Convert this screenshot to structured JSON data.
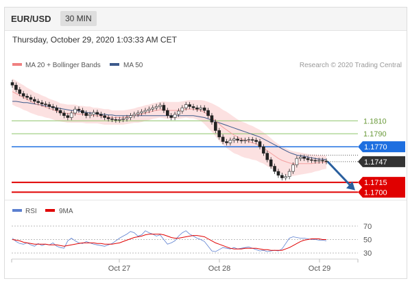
{
  "header": {
    "pair": "EUR/USD",
    "timeframe": "30 MIN"
  },
  "timestamp": "Thursday, October 29, 2020 1:03:33 AM CET",
  "credit": "Research © 2020 Trading Central",
  "colors": {
    "ma20": "#f08080",
    "ma50": "#3d5a8c",
    "green_level": "#8cc468",
    "blue_level": "#1e6fe0",
    "red_level": "#e00000",
    "current": "#333333",
    "rsi": "#5b7fd0",
    "rsi_ma": "#e00000",
    "arrow": "#2a5f9e"
  },
  "chart_data": [
    {
      "type": "line",
      "title": "",
      "legend": [
        {
          "name": "MA 20 + Bollinger Bands",
          "color": "#f08080"
        },
        {
          "name": "MA 50",
          "color": "#3d5a8c"
        }
      ],
      "x_ticks": [
        "Oct 27",
        "Oct 28",
        "Oct 29"
      ],
      "ylim": [
        1.1693,
        1.188
      ],
      "levels": [
        {
          "value": 1.181,
          "label": "1.1810",
          "kind": "resistance"
        },
        {
          "value": 1.179,
          "label": "1.1790",
          "kind": "resistance"
        },
        {
          "value": 1.177,
          "label": "1.1770",
          "kind": "pivot"
        },
        {
          "value": 1.1747,
          "label": "1.1747",
          "kind": "current"
        },
        {
          "value": 1.1715,
          "label": "1.1715",
          "kind": "target"
        },
        {
          "value": 1.17,
          "label": "1.1700",
          "kind": "target"
        }
      ],
      "series": [
        {
          "name": "Price",
          "values": [
            1.1865,
            1.1858,
            1.1852,
            1.1848,
            1.1846,
            1.1843,
            1.184,
            1.1838,
            1.1836,
            1.1835,
            1.1832,
            1.183,
            1.1826,
            1.1822,
            1.1818,
            1.1815,
            1.1822,
            1.1828,
            1.1826,
            1.1822,
            1.1818,
            1.182,
            1.1823,
            1.182,
            1.1818,
            1.1815,
            1.1813,
            1.1812,
            1.1811,
            1.1812,
            1.1813,
            1.1815,
            1.1818,
            1.182,
            1.1822,
            1.1824,
            1.1826,
            1.1828,
            1.183,
            1.1832,
            1.1834,
            1.1826,
            1.1818,
            1.1815,
            1.182,
            1.1825,
            1.183,
            1.1835,
            1.1832,
            1.183,
            1.1828,
            1.183,
            1.1826,
            1.1818,
            1.1808,
            1.1795,
            1.1785,
            1.1778,
            1.1776,
            1.178,
            1.1782,
            1.178,
            1.1779,
            1.178,
            1.1781,
            1.178,
            1.1778,
            1.177,
            1.176,
            1.175,
            1.174,
            1.1732,
            1.1726,
            1.1722,
            1.1724,
            1.1732,
            1.1742,
            1.1752,
            1.1754,
            1.1752,
            1.175,
            1.1749,
            1.1748,
            1.1749,
            1.1748,
            1.1747
          ]
        },
        {
          "name": "MA 20",
          "values": [
            1.1855,
            1.1852,
            1.1849,
            1.1846,
            1.1843,
            1.184,
            1.1837,
            1.1835,
            1.1833,
            1.1831,
            1.1829,
            1.1827,
            1.1825,
            1.1823,
            1.1822,
            1.1821,
            1.1821,
            1.1821,
            1.182,
            1.182,
            1.1819,
            1.1819,
            1.1818,
            1.1818,
            1.1817,
            1.1816,
            1.1816,
            1.1815,
            1.1815,
            1.1815,
            1.1815,
            1.1816,
            1.1817,
            1.1818,
            1.1819,
            1.182,
            1.1822,
            1.1823,
            1.1825,
            1.1826,
            1.1827,
            1.1827,
            1.1826,
            1.1826,
            1.1826,
            1.1826,
            1.1827,
            1.1828,
            1.1828,
            1.1828,
            1.1827,
            1.1826,
            1.1823,
            1.1819,
            1.1815,
            1.181,
            1.1805,
            1.18,
            1.1796,
            1.1792,
            1.1788,
            1.1785,
            1.1782,
            1.178,
            1.1778,
            1.1776,
            1.1774,
            1.1771,
            1.1768,
            1.1764,
            1.176,
            1.1756,
            1.1752,
            1.1749,
            1.1747,
            1.1745,
            1.1744,
            1.1744,
            1.1744,
            1.1744,
            1.1744,
            1.1744,
            1.1745,
            1.1745,
            1.1746,
            1.1746
          ]
        },
        {
          "name": "MA 50",
          "values": [
            1.184,
            1.184,
            1.1839,
            1.1838,
            1.1838,
            1.1837,
            1.1836,
            1.1835,
            1.1834,
            1.1833,
            1.1832,
            1.1831,
            1.183,
            1.1829,
            1.1828,
            1.1827,
            1.1826,
            1.1826,
            1.1825,
            1.1824,
            1.1823,
            1.1822,
            1.1822,
            1.1821,
            1.182,
            1.182,
            1.1819,
            1.1819,
            1.1818,
            1.1818,
            1.1818,
            1.1818,
            1.1818,
            1.1818,
            1.1818,
            1.1818,
            1.1818,
            1.1818,
            1.1818,
            1.1818,
            1.1818,
            1.1818,
            1.1818,
            1.1818,
            1.1818,
            1.1818,
            1.1818,
            1.1818,
            1.1818,
            1.1818,
            1.1817,
            1.1816,
            1.1815,
            1.1813,
            1.1811,
            1.1809,
            1.1807,
            1.1805,
            1.1803,
            1.1801,
            1.1799,
            1.1797,
            1.1795,
            1.1793,
            1.1791,
            1.1789,
            1.1787,
            1.1785,
            1.1782,
            1.1779,
            1.1776,
            1.1773,
            1.177,
            1.1767,
            1.1764,
            1.1761,
            1.1759,
            1.1757,
            1.1756,
            1.1755,
            1.1754,
            1.1753,
            1.1752,
            1.1751,
            1.1751,
            1.175
          ]
        }
      ],
      "band_width": [
        20,
        20,
        19,
        19,
        18,
        18,
        17,
        17,
        16,
        16,
        15,
        15,
        15,
        14,
        14,
        14,
        14,
        14,
        13,
        13,
        13,
        13,
        12,
        12,
        12,
        12,
        12,
        11,
        11,
        11,
        11,
        11,
        11,
        11,
        12,
        12,
        12,
        12,
        12,
        12,
        12,
        13,
        13,
        13,
        13,
        13,
        13,
        13,
        14,
        14,
        15,
        16,
        18,
        20,
        22,
        24,
        26,
        27,
        28,
        28,
        28,
        27,
        27,
        27,
        26,
        26,
        25,
        25,
        24,
        24,
        23,
        22,
        22,
        21,
        21,
        20,
        19,
        18,
        17,
        16,
        15,
        14,
        13,
        12,
        11,
        10
      ]
    },
    {
      "type": "line",
      "title": "",
      "legend": [
        {
          "name": "RSI",
          "color": "#5b7fd0"
        },
        {
          "name": "9MA",
          "color": "#e00000"
        }
      ],
      "ylim": [
        25,
        80
      ],
      "levels": [
        {
          "value": 70,
          "label": "70"
        },
        {
          "value": 50,
          "label": "50"
        },
        {
          "value": 30,
          "label": "30"
        }
      ],
      "series": [
        {
          "name": "RSI",
          "values": [
            52,
            47,
            44,
            43,
            45,
            42,
            40,
            44,
            41,
            43,
            42,
            45,
            40,
            38,
            37,
            48,
            52,
            48,
            45,
            44,
            47,
            45,
            43,
            42,
            41,
            40,
            42,
            44,
            48,
            52,
            55,
            58,
            62,
            60,
            55,
            57,
            63,
            60,
            58,
            55,
            57,
            50,
            43,
            45,
            48,
            55,
            60,
            63,
            58,
            55,
            52,
            50,
            47,
            40,
            33,
            32,
            35,
            38,
            37,
            36,
            38,
            36,
            37,
            38,
            39,
            37,
            35,
            33,
            34,
            32,
            33,
            34,
            33,
            36,
            44,
            52,
            54,
            53,
            52,
            52,
            51,
            50,
            50,
            49,
            49,
            48
          ]
        },
        {
          "name": "9MA",
          "values": [
            50,
            49,
            48,
            46,
            45,
            44,
            43,
            43,
            43,
            43,
            42,
            42,
            42,
            41,
            40,
            41,
            42,
            43,
            44,
            45,
            45,
            45,
            45,
            44,
            44,
            43,
            43,
            43,
            44,
            45,
            47,
            49,
            51,
            53,
            54,
            55,
            57,
            58,
            58,
            58,
            58,
            57,
            55,
            53,
            52,
            52,
            53,
            54,
            55,
            56,
            56,
            55,
            54,
            51,
            48,
            45,
            43,
            41,
            39,
            37,
            36,
            36,
            36,
            37,
            37,
            37,
            37,
            36,
            35,
            35,
            34,
            34,
            34,
            34,
            36,
            38,
            41,
            44,
            47,
            49,
            50,
            51,
            51,
            51,
            50,
            50
          ]
        }
      ]
    }
  ]
}
